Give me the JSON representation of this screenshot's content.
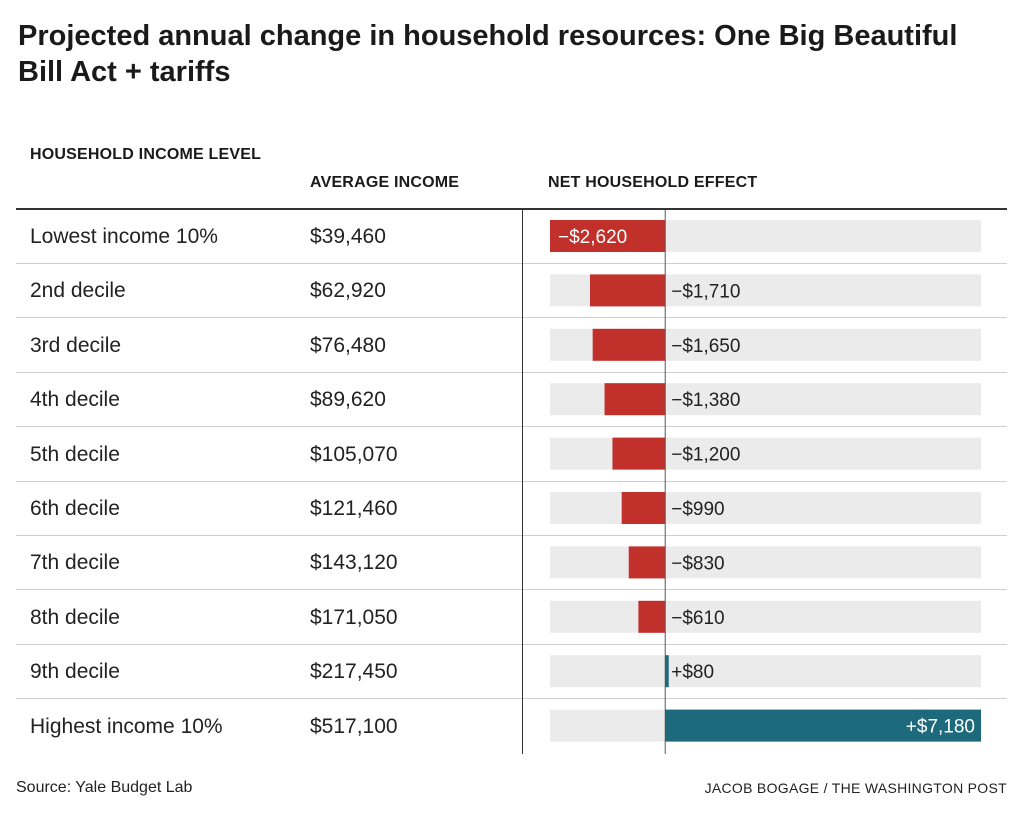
{
  "title": "Projected annual change in household resources: One Big Beautiful Bill Act + tariffs",
  "headers": {
    "income_level": "HOUSEHOLD INCOME LEVEL",
    "average_income": "AVERAGE INCOME",
    "net_effect": "NET HOUSEHOLD EFFECT"
  },
  "source": "Source: Yale Budget Lab",
  "credit": "JACOB BOGAGE / THE WASHINGTON POST",
  "colors": {
    "negative": "#c2302c",
    "positive": "#1d6a7c",
    "track": "#ebebeb",
    "zero_line": "#555555"
  },
  "chart_data": {
    "type": "bar",
    "orientation": "horizontal",
    "categories": [
      "Lowest income 10%",
      "2nd decile",
      "3rd decile",
      "4th decile",
      "5th decile",
      "6th decile",
      "7th decile",
      "8th decile",
      "9th decile",
      "Highest income 10%"
    ],
    "average_income": [
      "$39,460",
      "$62,920",
      "$76,480",
      "$89,620",
      "$105,070",
      "$121,460",
      "$143,120",
      "$171,050",
      "$217,450",
      "$517,100"
    ],
    "values": [
      -2620,
      -1710,
      -1650,
      -1380,
      -1200,
      -990,
      -830,
      -610,
      80,
      7180
    ],
    "value_labels": [
      "−$2,620",
      "−$1,710",
      "−$1,650",
      "−$1,380",
      "−$1,200",
      "−$990",
      "−$830",
      "−$610",
      "+$80",
      "+$7,180"
    ],
    "xlim": [
      -2620,
      7180
    ],
    "grid": false,
    "legend": "none"
  }
}
